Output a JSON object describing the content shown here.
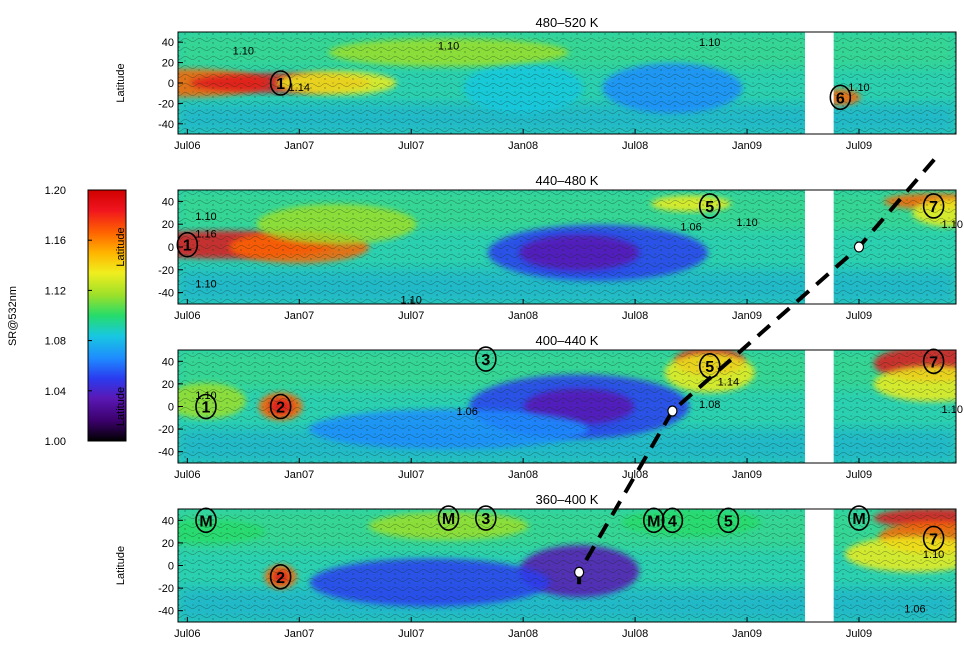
{
  "colorbar": {
    "label": "SR@532nm",
    "ticks": [
      "1.20",
      "1.16",
      "1.12",
      "1.08",
      "1.04",
      "1.00"
    ],
    "range": [
      1.0,
      1.2
    ],
    "colors": [
      "#000000",
      "#3b006b",
      "#5a18b4",
      "#2a3cf0",
      "#1e8cff",
      "#18c8e0",
      "#26dc6a",
      "#9be02a",
      "#f0ee1e",
      "#ffb400",
      "#ff6400",
      "#f0141e",
      "#d00000"
    ]
  },
  "chart_data": [
    {
      "type": "heatmap",
      "title": "480–520 K",
      "ylabel": "Latitude",
      "yticks": [
        "40",
        "20",
        "0",
        "-20",
        "-40"
      ],
      "ylim": [
        -50,
        50
      ],
      "xticks": [
        "Jul06",
        "Jan07",
        "Jul07",
        "Jan08",
        "Jul08",
        "Jan09",
        "Jul09"
      ],
      "data_gap": [
        "Apr09",
        "May09"
      ],
      "annotations": [
        {
          "label": "1",
          "date": "Dec06",
          "lat": 0
        },
        {
          "label": "6",
          "date": "Jun09",
          "lat": -14
        }
      ],
      "contour_labels": [
        {
          "text": "1.10",
          "date": "Oct06",
          "lat": 32
        },
        {
          "text": "1.10",
          "date": "Sep07",
          "lat": 37
        },
        {
          "text": "1.10",
          "date": "Nov08",
          "lat": 40
        },
        {
          "text": "1.10",
          "date": "Jul09",
          "lat": -4
        },
        {
          "text": "1.14",
          "date": "Jan07",
          "lat": -4
        }
      ]
    },
    {
      "type": "heatmap",
      "title": "440–480 K",
      "ylabel": "Latitude",
      "yticks": [
        "40",
        "20",
        "0",
        "-20",
        "-40"
      ],
      "ylim": [
        -50,
        50
      ],
      "xticks": [
        "Jul06",
        "Jan07",
        "Jul07",
        "Jan08",
        "Jul08",
        "Jan09",
        "Jul09"
      ],
      "data_gap": [
        "Apr09",
        "May09"
      ],
      "annotations": [
        {
          "label": "1",
          "date": "Jul06",
          "lat": 2
        },
        {
          "label": "5",
          "date": "Nov08",
          "lat": 36
        },
        {
          "label": "7",
          "date": "Nov09",
          "lat": 36
        }
      ],
      "contour_labels": [
        {
          "text": "1.10",
          "date": "Aug06",
          "lat": 27
        },
        {
          "text": "1.16",
          "date": "Aug06",
          "lat": 12
        },
        {
          "text": "1.10",
          "date": "Aug06",
          "lat": -32
        },
        {
          "text": "1.06",
          "date": "Oct08",
          "lat": 18
        },
        {
          "text": "1.10",
          "date": "Jan09",
          "lat": 22
        },
        {
          "text": "1.10",
          "date": "Dec09",
          "lat": 20
        },
        {
          "text": "1.10",
          "date": "Jul07",
          "lat": -46
        }
      ]
    },
    {
      "type": "heatmap",
      "title": "400–440 K",
      "ylabel": "Latitude",
      "yticks": [
        "40",
        "20",
        "0",
        "-20",
        "-40"
      ],
      "ylim": [
        -50,
        50
      ],
      "xticks": [
        "Jul06",
        "Jan07",
        "Jul07",
        "Jan08",
        "Jul08",
        "Jan09",
        "Jul09"
      ],
      "data_gap": [
        "Apr09",
        "May09"
      ],
      "annotations": [
        {
          "label": "1",
          "date": "Aug06",
          "lat": 0
        },
        {
          "label": "2",
          "date": "Dec06",
          "lat": 0
        },
        {
          "label": "3",
          "date": "Nov07",
          "lat": 42
        },
        {
          "label": "5",
          "date": "Nov08",
          "lat": 36
        },
        {
          "label": "7",
          "date": "Nov09",
          "lat": 40
        }
      ],
      "contour_labels": [
        {
          "text": "1.10",
          "date": "Aug06",
          "lat": 10
        },
        {
          "text": "1.06",
          "date": "Oct07",
          "lat": -4
        },
        {
          "text": "1.14",
          "date": "Dec08",
          "lat": 22
        },
        {
          "text": "1.08",
          "date": "Nov08",
          "lat": 2
        },
        {
          "text": "1.10",
          "date": "Dec09",
          "lat": -2
        }
      ]
    },
    {
      "type": "heatmap",
      "title": "360–400 K",
      "ylabel": "Latitude",
      "yticks": [
        "40",
        "20",
        "0",
        "-20",
        "-40"
      ],
      "ylim": [
        -50,
        50
      ],
      "xticks": [
        "Jul06",
        "Jan07",
        "Jul07",
        "Jan08",
        "Jul08",
        "Jan09",
        "Jul09"
      ],
      "data_gap": [
        "Apr09",
        "May09"
      ],
      "annotations": [
        {
          "label": "M",
          "date": "Aug06",
          "lat": 40
        },
        {
          "label": "2",
          "date": "Dec06",
          "lat": -10
        },
        {
          "label": "M",
          "date": "Sep07",
          "lat": 42
        },
        {
          "label": "3",
          "date": "Nov07",
          "lat": 42
        },
        {
          "label": "M",
          "date": "Aug08",
          "lat": 40
        },
        {
          "label": "4",
          "date": "Sep08",
          "lat": 40
        },
        {
          "label": "5",
          "date": "Dec08",
          "lat": 40
        },
        {
          "label": "M",
          "date": "Jul09",
          "lat": 42
        },
        {
          "label": "7",
          "date": "Nov09",
          "lat": 24
        }
      ],
      "contour_labels": [
        {
          "text": "1.10",
          "date": "Nov09",
          "lat": 10
        },
        {
          "text": "1.06",
          "date": "Oct09",
          "lat": -38
        }
      ]
    }
  ],
  "overlay": {
    "line_style": "dashed",
    "markers": [
      {
        "panel": 4,
        "date": "Apr08",
        "lat": -6
      },
      {
        "panel": 3,
        "date": "Sep08",
        "lat": -4
      },
      {
        "panel": 2,
        "date": "Jul09",
        "lat": 0
      }
    ]
  }
}
